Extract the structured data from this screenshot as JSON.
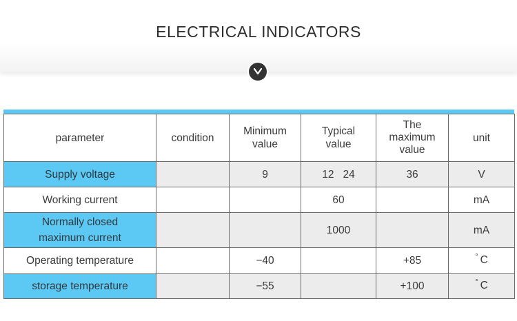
{
  "header": {
    "title": "ELECTRICAL  INDICATORS",
    "badge_icon": "chevron-down-icon"
  },
  "colors": {
    "accent": "#5cc8f4",
    "badge": "#333333",
    "shaded_row": "#ececec"
  },
  "table": {
    "columns": [
      "parameter",
      "condition",
      "Minimum value",
      "Typical value",
      "The maximum value",
      "unit"
    ],
    "rows": [
      {
        "parameter": "Supply voltage",
        "condition": "",
        "min": "9",
        "typical": "12   24",
        "max": "36",
        "unit": "V"
      },
      {
        "parameter": "Working current",
        "condition": "",
        "min": "",
        "typical": "60",
        "max": "",
        "unit": "mA"
      },
      {
        "parameter": "Normally closed maximum current",
        "condition": "",
        "min": "",
        "typical": "1000",
        "max": "",
        "unit": "mA"
      },
      {
        "parameter": "Operating temperature",
        "condition": "",
        "min": "−40",
        "typical": "",
        "max": "+85",
        "unit_symbol": "°",
        "unit": "C"
      },
      {
        "parameter": "storage temperature",
        "condition": "",
        "min": "−55",
        "typical": "",
        "max": "+100",
        "unit_symbol": "°",
        "unit": "C"
      }
    ]
  }
}
